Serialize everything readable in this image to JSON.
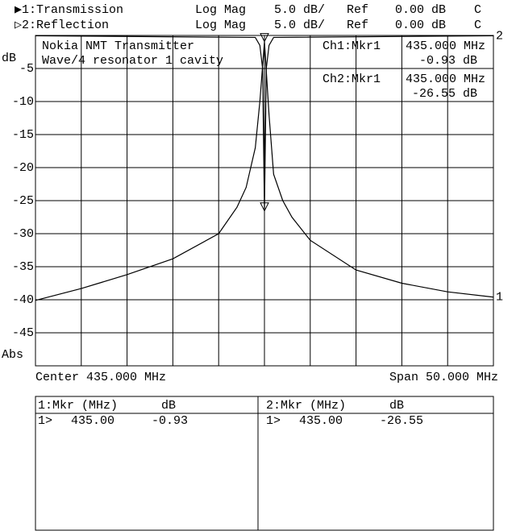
{
  "chart_data": {
    "type": "line",
    "channels": [
      {
        "label": "▶1:Transmission",
        "format": "Log Mag",
        "scale": "5.0 dB/",
        "ref_label": "Ref",
        "ref": "0.00 dB",
        "flag": "C"
      },
      {
        "label": "▷2:Reflection",
        "format": "Log Mag",
        "scale": "5.0 dB/",
        "ref_label": "Ref",
        "ref": "0.00 dB",
        "flag": "C"
      }
    ],
    "annotations": [
      "Nokia NMT Transmitter",
      "Wave/4 resonator 1 cavity"
    ],
    "marker_readouts": [
      {
        "label": "Ch1:Mkr1",
        "freq": "435.000 MHz",
        "value": "-0.93 dB"
      },
      {
        "label": "Ch2:Mkr1",
        "freq": "435.000 MHz",
        "value": "-26.55 dB"
      }
    ],
    "y_label": "dB",
    "y_footer": "Abs",
    "x_left_label": "Center 435.000 MHz",
    "x_right_label": "Span 50.000 MHz",
    "xlim": [
      410,
      460
    ],
    "ylim": [
      -50,
      0
    ],
    "yticks": [
      -5,
      -10,
      -15,
      -20,
      -25,
      -30,
      -35,
      -40,
      -45
    ],
    "grid": true,
    "series": [
      {
        "name": "1",
        "color": "#000000",
        "x": [
          410,
          415,
          420,
          425,
          430,
          432,
          433,
          434,
          434.5,
          435,
          435.5,
          436,
          437,
          438,
          440,
          445,
          450,
          455,
          460
        ],
        "values": [
          -40.1,
          -38.3,
          -36.2,
          -33.8,
          -30,
          -26,
          -23,
          -17,
          -10,
          -0.93,
          -12,
          -21,
          -25,
          -27.5,
          -31,
          -35.5,
          -37.5,
          -38.8,
          -39.6
        ],
        "marker_x": 435,
        "marker_value": -0.93
      },
      {
        "name": "2",
        "color": "#000000",
        "x": [
          410,
          434,
          434.5,
          434.8,
          435,
          435.2,
          435.5,
          436,
          460
        ],
        "values": [
          -0.05,
          -0.3,
          -1.5,
          -5,
          -26.55,
          -5,
          -1.5,
          -0.3,
          -0.05
        ],
        "marker_x": 435,
        "marker_value": -26.55
      }
    ],
    "marker_table": [
      {
        "header": "1:Mkr (MHz)",
        "unit": "dB",
        "row": [
          "1>",
          "435.00",
          "-0.93"
        ]
      },
      {
        "header": "2:Mkr (MHz)",
        "unit": "dB",
        "row": [
          "1>",
          "435.00",
          "-26.55"
        ]
      }
    ]
  }
}
